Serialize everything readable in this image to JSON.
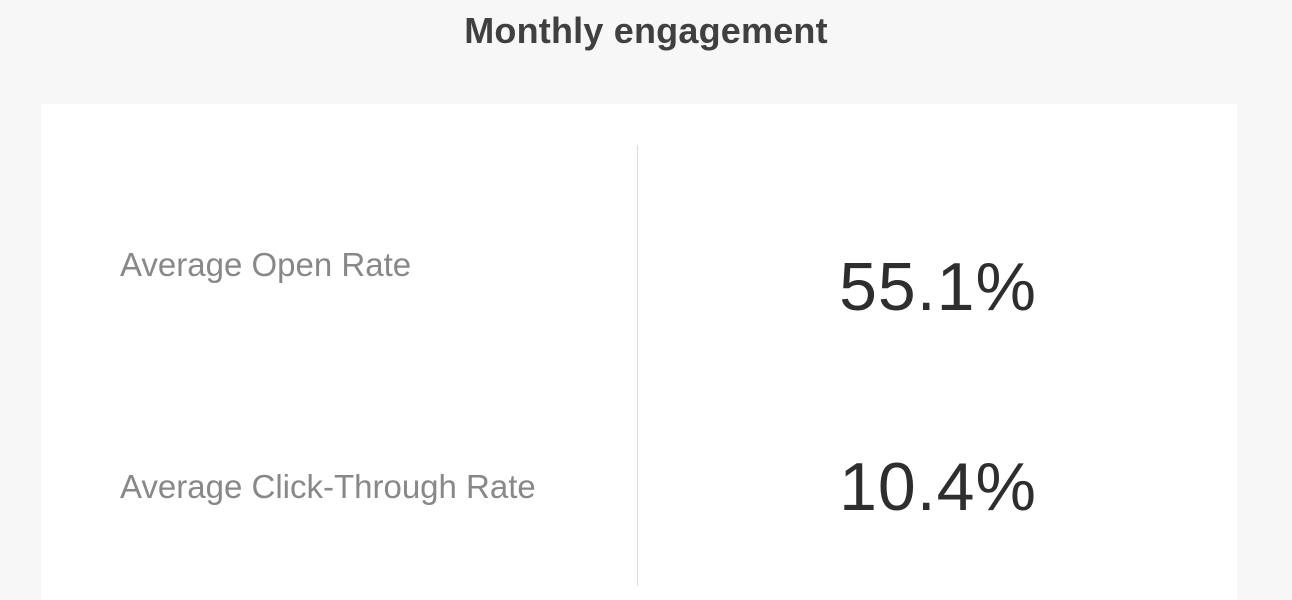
{
  "header": {
    "title": "Monthly engagement"
  },
  "metrics": [
    {
      "label": "Average Open Rate",
      "value": "55.1%"
    },
    {
      "label": "Average Click-Through Rate",
      "value": "10.4%"
    }
  ]
}
